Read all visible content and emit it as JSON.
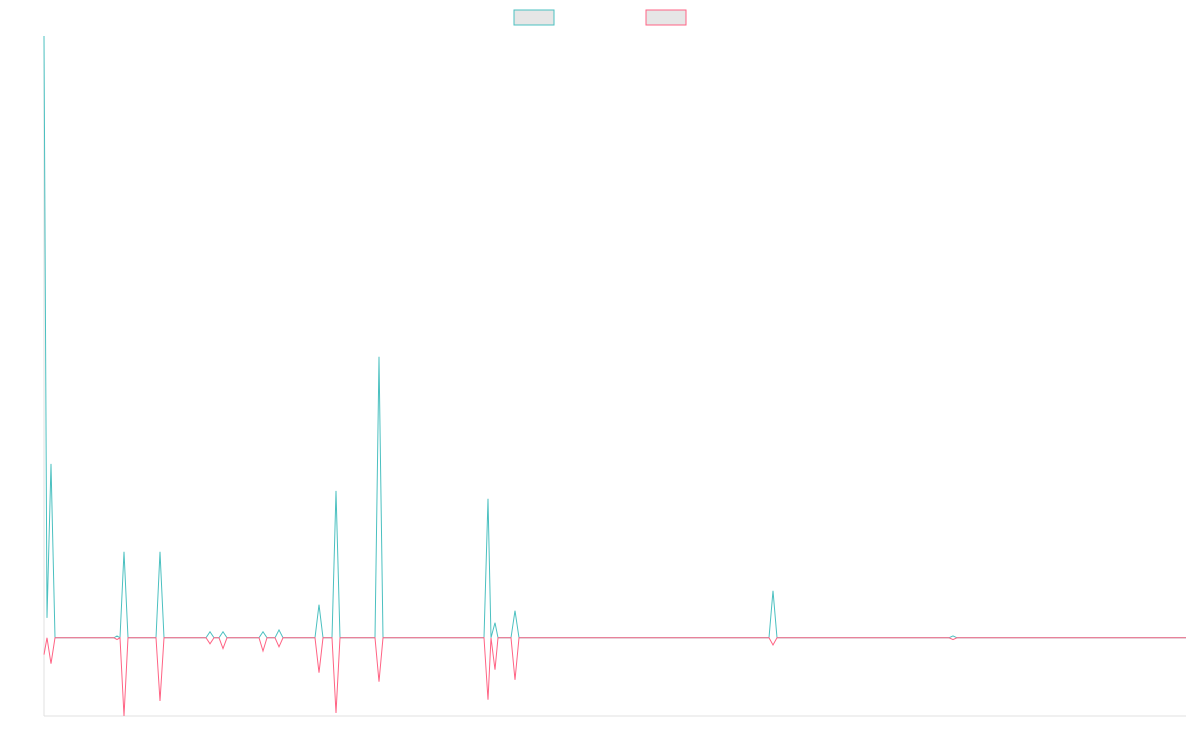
{
  "chart_data": {
    "type": "line",
    "x": [
      0,
      3,
      7,
      11,
      70,
      73,
      76,
      80,
      84,
      112,
      116,
      120,
      162,
      166,
      170,
      175,
      179,
      183,
      215,
      219,
      223,
      231,
      235,
      239,
      271,
      275,
      279,
      288,
      292,
      296,
      331,
      335,
      339,
      440,
      444,
      447,
      451,
      454,
      467,
      471,
      475,
      725,
      729,
      733,
      905,
      909,
      913,
      1142
    ],
    "series": [
      {
        "color": "#4bc0c0",
        "values": [
          100,
          3.3,
          28.9,
          0,
          0,
          0.3,
          0,
          14.3,
          0,
          0,
          14.3,
          0,
          0,
          1,
          0,
          0,
          1,
          0,
          0,
          1,
          0,
          0,
          1.3,
          0,
          0,
          5.5,
          0,
          0,
          24.4,
          0,
          0,
          46.7,
          0,
          0,
          23.1,
          0,
          2.5,
          0,
          0,
          4.5,
          0,
          0,
          7.8,
          0,
          0,
          0.3,
          0,
          0
        ]
      },
      {
        "color": "#ff6384",
        "values": [
          -2.8,
          0,
          -4.3,
          0,
          0,
          -0.3,
          0,
          -13,
          0,
          0,
          -10.5,
          0,
          0,
          -1,
          0,
          0,
          -1.8,
          0,
          0,
          -2.2,
          0,
          0,
          -1.5,
          0,
          0,
          -5.8,
          0,
          0,
          -12.5,
          0,
          0,
          -7.3,
          0,
          0,
          -10.3,
          0,
          -5.3,
          0,
          0,
          -7,
          0,
          0,
          -1.2,
          0,
          0,
          -0.3,
          0,
          0
        ]
      }
    ],
    "xlim": [
      0,
      1142
    ],
    "ylim": [
      -13,
      100
    ],
    "grid": false
  }
}
